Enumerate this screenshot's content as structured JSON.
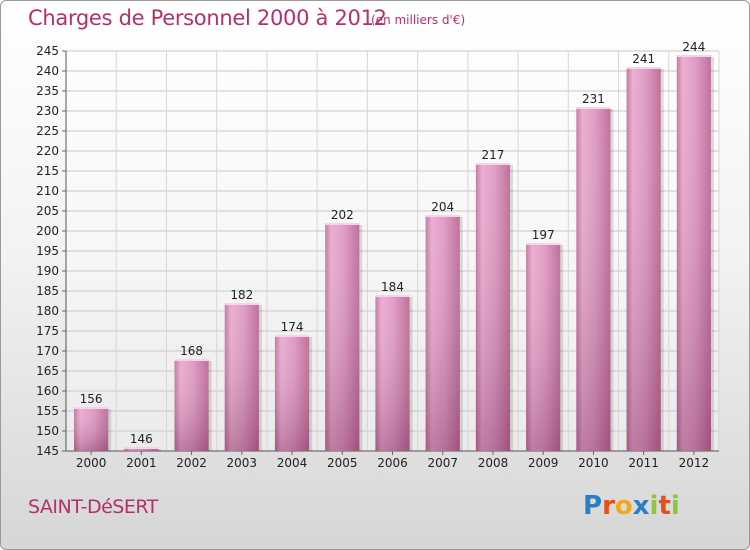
{
  "header": {
    "title": "Charges de Personnel 2000 à 2012",
    "subtitle": "(en milliers d'€)"
  },
  "footer": {
    "place": "SAINT-DéSERT",
    "logo_letters": [
      "P",
      "r",
      "o",
      "x",
      "i",
      "t",
      "i"
    ],
    "logo_colors": [
      "#2a7fc4",
      "#e84e1b",
      "#f2a81d",
      "#2a7fc4",
      "#8cc63f",
      "#e84e1b",
      "#8cc63f"
    ]
  },
  "chart_data": {
    "type": "bar",
    "title": "Charges de Personnel 2000 à 2012",
    "subtitle": "(en milliers d'€)",
    "categories": [
      "2000",
      "2001",
      "2002",
      "2003",
      "2004",
      "2005",
      "2006",
      "2007",
      "2008",
      "2009",
      "2010",
      "2011",
      "2012"
    ],
    "values": [
      156,
      146,
      168,
      182,
      174,
      202,
      184,
      204,
      217,
      197,
      231,
      241,
      244
    ],
    "data_labels": [
      "156",
      "146",
      "168",
      "182",
      "174",
      "202",
      "184",
      "204",
      "217",
      "197",
      "231",
      "241",
      "244"
    ],
    "ylim": [
      145,
      245
    ],
    "yticks": [
      145,
      150,
      155,
      160,
      165,
      170,
      175,
      180,
      185,
      190,
      195,
      200,
      205,
      210,
      215,
      220,
      225,
      230,
      235,
      240,
      245
    ],
    "ytick_labels": [
      "145",
      "150",
      "155",
      "160",
      "165",
      "170",
      "175",
      "180",
      "185",
      "190",
      "195",
      "200",
      "205",
      "210",
      "215",
      "220",
      "225",
      "230",
      "235",
      "240",
      "245"
    ],
    "grid": true,
    "bar_color": "#d98cb8"
  }
}
